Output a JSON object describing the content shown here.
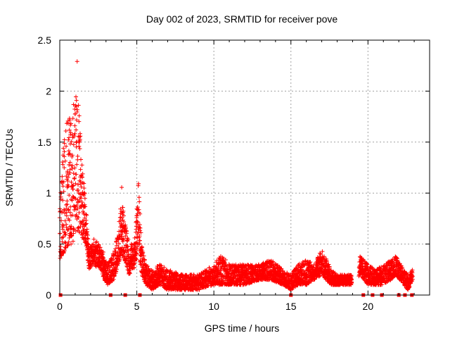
{
  "chart_data": {
    "type": "scatter",
    "title": "Day 002 of 2023, SRMTID for receiver pove",
    "xlabel": "GPS time / hours",
    "ylabel": "SRMTID / TECUs",
    "xlim": [
      0,
      24
    ],
    "ylim": [
      0,
      2.5
    ],
    "xticks": [
      0,
      5,
      10,
      15,
      20
    ],
    "xtick_labels": [
      "0",
      "5",
      "10",
      "15",
      "20"
    ],
    "yticks": [
      0,
      0.5,
      1,
      1.5,
      2,
      2.5
    ],
    "ytick_labels": [
      "0",
      "0.5",
      "1",
      "1.5",
      "2",
      "2.5"
    ],
    "grid": true,
    "marker": "+",
    "series_color": "#ff0000",
    "zero_markers_x": [
      0.05,
      3.3,
      4.25,
      5.2,
      15.0,
      19.7,
      20.3,
      20.9,
      22.0,
      22.4,
      22.85
    ],
    "envelope": [
      [
        0.0,
        0.35,
        1.0
      ],
      [
        0.2,
        0.4,
        1.4
      ],
      [
        0.4,
        0.45,
        1.7
      ],
      [
        0.6,
        0.5,
        1.8
      ],
      [
        0.8,
        0.5,
        1.7
      ],
      [
        1.0,
        0.5,
        2.1
      ],
      [
        1.15,
        0.6,
        2.35
      ],
      [
        1.3,
        0.6,
        1.7
      ],
      [
        1.5,
        0.55,
        1.2
      ],
      [
        1.7,
        0.5,
        0.9
      ],
      [
        1.9,
        0.25,
        0.45
      ],
      [
        2.2,
        0.3,
        0.55
      ],
      [
        2.6,
        0.25,
        0.5
      ],
      [
        2.9,
        0.15,
        0.4
      ],
      [
        3.1,
        0.1,
        0.3
      ],
      [
        3.5,
        0.15,
        0.45
      ],
      [
        3.8,
        0.3,
        0.6
      ],
      [
        4.0,
        0.4,
        1.1
      ],
      [
        4.2,
        0.35,
        0.75
      ],
      [
        4.5,
        0.2,
        0.5
      ],
      [
        4.8,
        0.25,
        0.5
      ],
      [
        5.0,
        0.35,
        0.85
      ],
      [
        5.1,
        0.5,
        1.15
      ],
      [
        5.3,
        0.2,
        0.5
      ],
      [
        5.6,
        0.1,
        0.3
      ],
      [
        6.0,
        0.05,
        0.25
      ],
      [
        6.5,
        0.1,
        0.3
      ],
      [
        7.0,
        0.05,
        0.25
      ],
      [
        8.0,
        0.05,
        0.2
      ],
      [
        9.0,
        0.05,
        0.2
      ],
      [
        10.0,
        0.1,
        0.3
      ],
      [
        10.5,
        0.1,
        0.4
      ],
      [
        11.0,
        0.1,
        0.3
      ],
      [
        12.0,
        0.1,
        0.3
      ],
      [
        13.0,
        0.15,
        0.3
      ],
      [
        13.7,
        0.15,
        0.35
      ],
      [
        14.5,
        0.1,
        0.25
      ],
      [
        15.0,
        0.05,
        0.2
      ],
      [
        15.5,
        0.1,
        0.3
      ],
      [
        16.0,
        0.1,
        0.35
      ],
      [
        16.5,
        0.15,
        0.3
      ],
      [
        17.0,
        0.2,
        0.45
      ],
      [
        17.3,
        0.15,
        0.35
      ],
      [
        17.6,
        0.1,
        0.25
      ],
      [
        18.0,
        0.1,
        0.2
      ],
      [
        18.9,
        0.1,
        0.2
      ],
      [
        19.5,
        0.2,
        0.38
      ],
      [
        20.0,
        0.1,
        0.3
      ],
      [
        20.5,
        0.1,
        0.25
      ],
      [
        21.0,
        0.1,
        0.3
      ],
      [
        21.5,
        0.15,
        0.35
      ],
      [
        21.8,
        0.2,
        0.4
      ],
      [
        22.3,
        0.1,
        0.25
      ],
      [
        22.6,
        0.05,
        0.2
      ],
      [
        22.9,
        0.15,
        0.25
      ]
    ],
    "gaps": [
      [
        18.95,
        19.4
      ]
    ]
  }
}
